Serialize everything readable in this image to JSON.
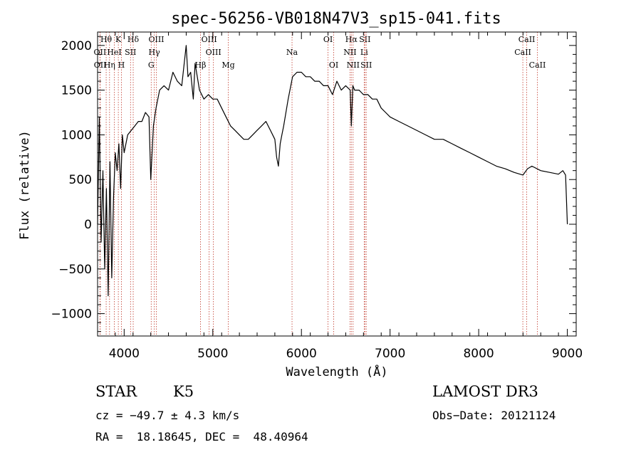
{
  "chart_data": {
    "type": "line",
    "title": "spec-56256-VB018N47V3_sp15-041.fits",
    "xlabel": "Wavelength (Å)",
    "ylabel": "Flux (relative)",
    "xlim": [
      3700,
      9100
    ],
    "ylim": [
      -1250,
      2150
    ],
    "x_ticks": [
      4000,
      5000,
      6000,
      7000,
      8000,
      9000
    ],
    "x_tick_labels": [
      "4000",
      "5000",
      "6000",
      "7000",
      "8000",
      "9000"
    ],
    "y_ticks": [
      -1000,
      -500,
      0,
      500,
      1000,
      1500,
      2000
    ],
    "y_tick_labels": [
      "−1000",
      "−500",
      "0",
      "500",
      "1000",
      "1500",
      "2000"
    ],
    "series": [
      {
        "name": "spectrum",
        "x": [
          3700,
          3720,
          3740,
          3760,
          3780,
          3800,
          3820,
          3840,
          3860,
          3880,
          3900,
          3920,
          3940,
          3960,
          3980,
          4000,
          4040,
          4080,
          4120,
          4160,
          4200,
          4240,
          4280,
          4300,
          4330,
          4360,
          4400,
          4450,
          4500,
          4550,
          4600,
          4650,
          4700,
          4720,
          4750,
          4780,
          4800,
          4850,
          4900,
          4950,
          5000,
          5050,
          5100,
          5150,
          5200,
          5250,
          5300,
          5350,
          5400,
          5450,
          5500,
          5550,
          5600,
          5650,
          5700,
          5720,
          5740,
          5760,
          5780,
          5800,
          5850,
          5880,
          5900,
          5950,
          6000,
          6050,
          6100,
          6150,
          6200,
          6250,
          6300,
          6350,
          6400,
          6450,
          6500,
          6550,
          6563,
          6580,
          6600,
          6650,
          6700,
          6750,
          6800,
          6850,
          6900,
          6950,
          7000,
          7100,
          7200,
          7300,
          7400,
          7500,
          7600,
          7700,
          7800,
          7900,
          8000,
          8100,
          8200,
          8300,
          8400,
          8500,
          8550,
          8600,
          8700,
          8800,
          8900,
          8950,
          8980,
          9000
        ],
        "y": [
          0,
          1200,
          -200,
          600,
          -500,
          400,
          -800,
          700,
          -600,
          300,
          800,
          600,
          900,
          400,
          1000,
          800,
          1000,
          1050,
          1100,
          1150,
          1150,
          1250,
          1200,
          500,
          1100,
          1300,
          1500,
          1550,
          1500,
          1700,
          1600,
          1550,
          2000,
          1650,
          1700,
          1400,
          1800,
          1500,
          1400,
          1450,
          1400,
          1400,
          1300,
          1200,
          1100,
          1050,
          1000,
          950,
          950,
          1000,
          1050,
          1100,
          1150,
          1050,
          950,
          750,
          650,
          900,
          1000,
          1100,
          1400,
          1550,
          1650,
          1700,
          1700,
          1650,
          1650,
          1600,
          1600,
          1550,
          1550,
          1450,
          1600,
          1500,
          1550,
          1500,
          1100,
          1550,
          1500,
          1500,
          1450,
          1450,
          1400,
          1400,
          1300,
          1250,
          1200,
          1150,
          1100,
          1050,
          1000,
          950,
          950,
          900,
          850,
          800,
          750,
          700,
          650,
          620,
          580,
          550,
          620,
          650,
          600,
          580,
          560,
          600,
          550,
          0
        ]
      }
    ],
    "spectral_lines": [
      {
        "label": "Hθ",
        "x": 3797,
        "row": 0
      },
      {
        "label": "OII",
        "x": 3727,
        "row": 1
      },
      {
        "label": "OII",
        "x": 3729,
        "row": 2
      },
      {
        "label": "K",
        "x": 3934,
        "row": 0
      },
      {
        "label": "HeI",
        "x": 3889,
        "row": 1
      },
      {
        "label": "Hη",
        "x": 3835,
        "row": 2
      },
      {
        "label": "H",
        "x": 3969,
        "row": 2
      },
      {
        "label": "Hδ",
        "x": 4102,
        "row": 0
      },
      {
        "label": "SII",
        "x": 4072,
        "row": 1
      },
      {
        "label": "OIII",
        "x": 4363,
        "row": 0
      },
      {
        "label": "Hγ",
        "x": 4340,
        "row": 1
      },
      {
        "label": "G",
        "x": 4305,
        "row": 2
      },
      {
        "label": "Hβ",
        "x": 4861,
        "row": 2
      },
      {
        "label": "OIII",
        "x": 4959,
        "row": 0
      },
      {
        "label": "OIII",
        "x": 5007,
        "row": 1
      },
      {
        "label": "Mg",
        "x": 5175,
        "row": 2
      },
      {
        "label": "Na",
        "x": 5894,
        "row": 1
      },
      {
        "label": "OI",
        "x": 6300,
        "row": 0
      },
      {
        "label": "OI",
        "x": 6364,
        "row": 2
      },
      {
        "label": "Hα",
        "x": 6563,
        "row": 0
      },
      {
        "label": "NII",
        "x": 6548,
        "row": 1
      },
      {
        "label": "NII",
        "x": 6583,
        "row": 2
      },
      {
        "label": "SII",
        "x": 6716,
        "row": 0
      },
      {
        "label": "Li",
        "x": 6708,
        "row": 1
      },
      {
        "label": "SII",
        "x": 6731,
        "row": 2
      },
      {
        "label": "CaII",
        "x": 8542,
        "row": 0
      },
      {
        "label": "CaII",
        "x": 8498,
        "row": 1
      },
      {
        "label": "CaII",
        "x": 8662,
        "row": 2
      }
    ]
  },
  "info": {
    "object_class": "STAR",
    "subclass": "K5",
    "survey": "LAMOST DR3",
    "cz_text": "cz = −49.7 ± 4.3 km/s",
    "obs_date_text": "Obs−Date: 20121124",
    "radec_text": "RA =  18.18645, DEC =  48.40964"
  }
}
